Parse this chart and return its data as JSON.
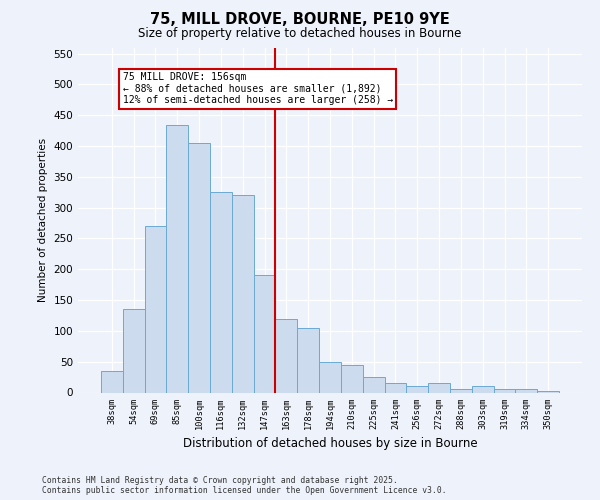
{
  "title": "75, MILL DROVE, BOURNE, PE10 9YE",
  "subtitle": "Size of property relative to detached houses in Bourne",
  "xlabel": "Distribution of detached houses by size in Bourne",
  "ylabel": "Number of detached properties",
  "bar_color": "#ccdcee",
  "bar_edge_color": "#6aaad4",
  "background_color": "#eef2fa",
  "grid_color": "#ffffff",
  "vline_color": "#cc0000",
  "annotation_text": "75 MILL DROVE: 156sqm\n← 88% of detached houses are smaller (1,892)\n12% of semi-detached houses are larger (258) →",
  "categories": [
    "38sqm",
    "54sqm",
    "69sqm",
    "85sqm",
    "100sqm",
    "116sqm",
    "132sqm",
    "147sqm",
    "163sqm",
    "178sqm",
    "194sqm",
    "210sqm",
    "225sqm",
    "241sqm",
    "256sqm",
    "272sqm",
    "288sqm",
    "303sqm",
    "319sqm",
    "334sqm",
    "350sqm"
  ],
  "values": [
    35,
    135,
    270,
    435,
    405,
    325,
    320,
    190,
    120,
    105,
    50,
    45,
    25,
    15,
    10,
    15,
    5,
    10,
    5,
    5,
    2
  ],
  "ylim": [
    0,
    560
  ],
  "yticks": [
    0,
    50,
    100,
    150,
    200,
    250,
    300,
    350,
    400,
    450,
    500,
    550
  ],
  "vline_bar_index": 8,
  "footer": "Contains HM Land Registry data © Crown copyright and database right 2025.\nContains public sector information licensed under the Open Government Licence v3.0."
}
